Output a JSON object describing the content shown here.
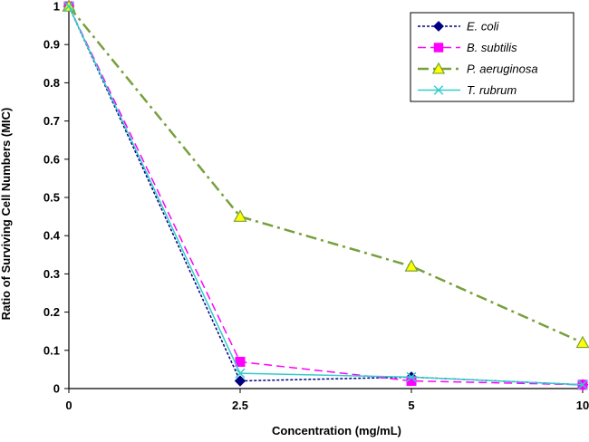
{
  "chart_data": {
    "type": "line",
    "xlabel": "Concentration (mg/mL)",
    "ylabel": "Ratio of Surviving Cell Numbers (MIC)",
    "categories": [
      "0",
      "2.5",
      "5",
      "10"
    ],
    "ylim": [
      0,
      1
    ],
    "yticks": [
      "0",
      "0.1",
      "0.2",
      "0.3",
      "0.4",
      "0.5",
      "0.6",
      "0.7",
      "0.8",
      "0.9",
      "1"
    ],
    "grid": false,
    "legend_position": "top-right",
    "series": [
      {
        "name": "E. coli",
        "values": [
          1,
          0.02,
          0.03,
          0.01
        ],
        "color": "#000080",
        "marker": "diamond",
        "dash": "short-dash"
      },
      {
        "name": "B. subtilis",
        "values": [
          1,
          0.07,
          0.02,
          0.01
        ],
        "color": "#FF00FF",
        "marker": "square",
        "dash": "long-dash"
      },
      {
        "name": "P. aeruginosa",
        "values": [
          1,
          0.45,
          0.32,
          0.12
        ],
        "color": "#77A03C",
        "marker": "triangle",
        "marker_fill": "#FFFF00",
        "dash": "dash-dot"
      },
      {
        "name": "T. rubrum",
        "values": [
          1,
          0.04,
          0.03,
          0.01
        ],
        "color": "#33CCCC",
        "marker": "x",
        "dash": "solid"
      }
    ]
  }
}
